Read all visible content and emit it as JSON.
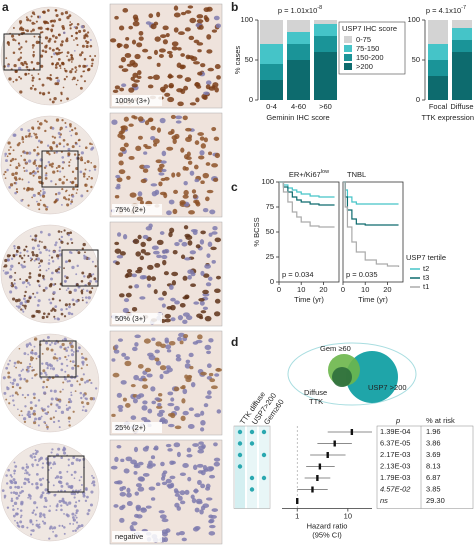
{
  "panel_labels": [
    "a",
    "b",
    "c",
    "d"
  ],
  "panel_a": {
    "captions": [
      "100% (3+)",
      "75% (2+)",
      "50% (3+)",
      "25% (2+)",
      "negative"
    ]
  },
  "venn": {
    "labels": [
      "Gem ≥60",
      "Diffuse",
      "TTK",
      "USP7 >200"
    ]
  },
  "chart_data": [
    {
      "type": "bar",
      "stacked": true,
      "title": "p = 1.01x10",
      "title_exponent": "-8",
      "categories": [
        "0-4",
        "4-60",
        ">60"
      ],
      "xlabel": "Geminin IHC score",
      "ylabel": "% cases",
      "ylim": [
        0,
        100
      ],
      "yticks": [
        0,
        50,
        100
      ],
      "legend_title": "USP7 IHC score",
      "series": [
        {
          "name": "0-75",
          "color": "#d3d3d3",
          "values": [
            30,
            15,
            5
          ]
        },
        {
          "name": "75-150",
          "color": "#45c4c8",
          "values": [
            25,
            15,
            15
          ]
        },
        {
          "name": "150-200",
          "color": "#1a9498",
          "values": [
            20,
            20,
            20
          ]
        },
        {
          "name": ">200",
          "color": "#0d6b6e",
          "values": [
            25,
            50,
            60
          ]
        }
      ]
    },
    {
      "type": "bar",
      "stacked": true,
      "title": "p = 4.1x10",
      "title_exponent": "-7",
      "categories": [
        "Focal",
        "Diffuse"
      ],
      "xlabel": "TTK expression",
      "ylim": [
        0,
        100
      ],
      "yticks": [
        0,
        50,
        100
      ],
      "series": [
        {
          "color": "#d3d3d3",
          "values": [
            30,
            10
          ]
        },
        {
          "color": "#45c4c8",
          "values": [
            20,
            15
          ]
        },
        {
          "color": "#1a9498",
          "values": [
            20,
            15
          ]
        },
        {
          "color": "#0d6b6e",
          "values": [
            30,
            60
          ]
        }
      ]
    },
    {
      "type": "line",
      "step": true,
      "title": "ER+/Ki67",
      "title_superscript": "low",
      "ylabel": "% BCSS",
      "xlabel": "Time (yr)",
      "xlim": [
        0,
        27
      ],
      "ylim": [
        0,
        100
      ],
      "xticks": [
        0,
        10,
        20
      ],
      "yticks": [
        0,
        25,
        50,
        75,
        100
      ],
      "annotation": "p = 0.034",
      "series": [
        {
          "color": "#45c4c8",
          "x": [
            0,
            2,
            4,
            6,
            8,
            10,
            14,
            18,
            25
          ],
          "values": [
            100,
            97,
            94,
            92,
            90,
            88,
            86,
            85,
            85
          ]
        },
        {
          "color": "#0d6b6e",
          "x": [
            0,
            2,
            4,
            6,
            8,
            10,
            14,
            18,
            25
          ],
          "values": [
            100,
            95,
            90,
            85,
            82,
            80,
            78,
            77,
            77
          ]
        },
        {
          "color": "#aaaaaa",
          "x": [
            0,
            2,
            4,
            6,
            8,
            10,
            14,
            18,
            25
          ],
          "values": [
            100,
            90,
            80,
            70,
            65,
            60,
            56,
            55,
            55
          ]
        }
      ]
    },
    {
      "type": "line",
      "step": true,
      "title": "TNBL",
      "xlabel": "Time (yr)",
      "xlim": [
        0,
        27
      ],
      "ylim": [
        0,
        100
      ],
      "xticks": [
        0,
        10,
        20
      ],
      "annotation": "p = 0.035",
      "legend_title": "USP7 tertile",
      "series": [
        {
          "name": "t2",
          "color": "#45c4c8",
          "x": [
            0,
            1,
            2,
            4,
            6,
            10,
            25
          ],
          "values": [
            100,
            92,
            85,
            80,
            78,
            78,
            78
          ]
        },
        {
          "name": "t3",
          "color": "#0d6b6e",
          "x": [
            0,
            1,
            2,
            4,
            6,
            10,
            25
          ],
          "values": [
            100,
            85,
            72,
            63,
            58,
            57,
            57
          ]
        },
        {
          "name": "t1",
          "color": "#aaaaaa",
          "x": [
            0,
            1,
            2,
            4,
            6,
            10,
            15,
            20,
            25
          ],
          "values": [
            100,
            75,
            55,
            40,
            30,
            22,
            18,
            16,
            15
          ]
        }
      ]
    },
    {
      "type": "forest",
      "xscale": "log",
      "xlim": [
        0.5,
        30
      ],
      "xticks": [
        1,
        10
      ],
      "xlabel": "Hazard ratio",
      "xlabel_2": "(95% CI)",
      "matrix_columns": [
        "TTK diffuse",
        "USP7>200",
        "Gem≥60"
      ],
      "matrix": [
        [
          1,
          1,
          1
        ],
        [
          1,
          1,
          0
        ],
        [
          1,
          0,
          1
        ],
        [
          1,
          0,
          0
        ],
        [
          0,
          1,
          1
        ],
        [
          0,
          1,
          0
        ],
        [
          0,
          0,
          0
        ]
      ],
      "values": [
        12,
        5.5,
        4,
        2.8,
        2.5,
        2.0,
        1
      ],
      "ci_low": [
        4,
        2.5,
        1.8,
        1.5,
        1.4,
        1.0,
        null
      ],
      "ci_high": [
        30,
        12,
        9,
        5.5,
        4.5,
        4.0,
        null
      ],
      "p_header": "p",
      "risk_header": "% at risk",
      "p_values": [
        "1.39E-04",
        "6.37E-05",
        "2.17E-03",
        "2.13E-03",
        "1.79E-03",
        "4.57E-02",
        "ns"
      ],
      "risk_values": [
        "1.96",
        "3.86",
        "3.69",
        "8.13",
        "6.87",
        "3.85",
        "29.30"
      ]
    }
  ]
}
